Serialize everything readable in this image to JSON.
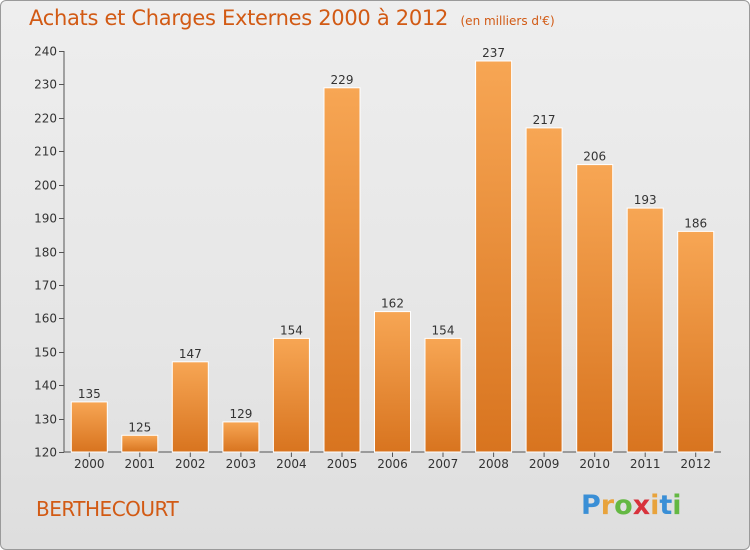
{
  "title": "Achats et Charges Externes 2000 à 2012",
  "subtitle": "(en milliers d'€)",
  "commune": "BERTHECOURT",
  "logo": {
    "letters": [
      "P",
      "r",
      "o",
      "x",
      "i",
      "t",
      "i"
    ],
    "colors": [
      "#3a8fd6",
      "#e8a33c",
      "#64b843",
      "#d8323c",
      "#e8a33c",
      "#3a8fd6",
      "#64b843"
    ]
  },
  "colors": {
    "bar_top": "#f7a654",
    "bar_bottom": "#d8741f",
    "bar_edge": "#ffffff",
    "text": "#333333",
    "accent": "#d25a14"
  },
  "chart_data": {
    "type": "bar",
    "categories": [
      "2000",
      "2001",
      "2002",
      "2003",
      "2004",
      "2005",
      "2006",
      "2007",
      "2008",
      "2009",
      "2010",
      "2011",
      "2012"
    ],
    "values": [
      135,
      125,
      147,
      129,
      154,
      229,
      162,
      154,
      237,
      217,
      206,
      193,
      186
    ],
    "title": "Achats et Charges Externes 2000 à 2012",
    "xlabel": "",
    "ylabel": "",
    "ylim": [
      120,
      240
    ],
    "yticks": [
      120,
      130,
      140,
      150,
      160,
      170,
      180,
      190,
      200,
      210,
      220,
      230,
      240
    ],
    "grid": false,
    "legend": "none"
  }
}
